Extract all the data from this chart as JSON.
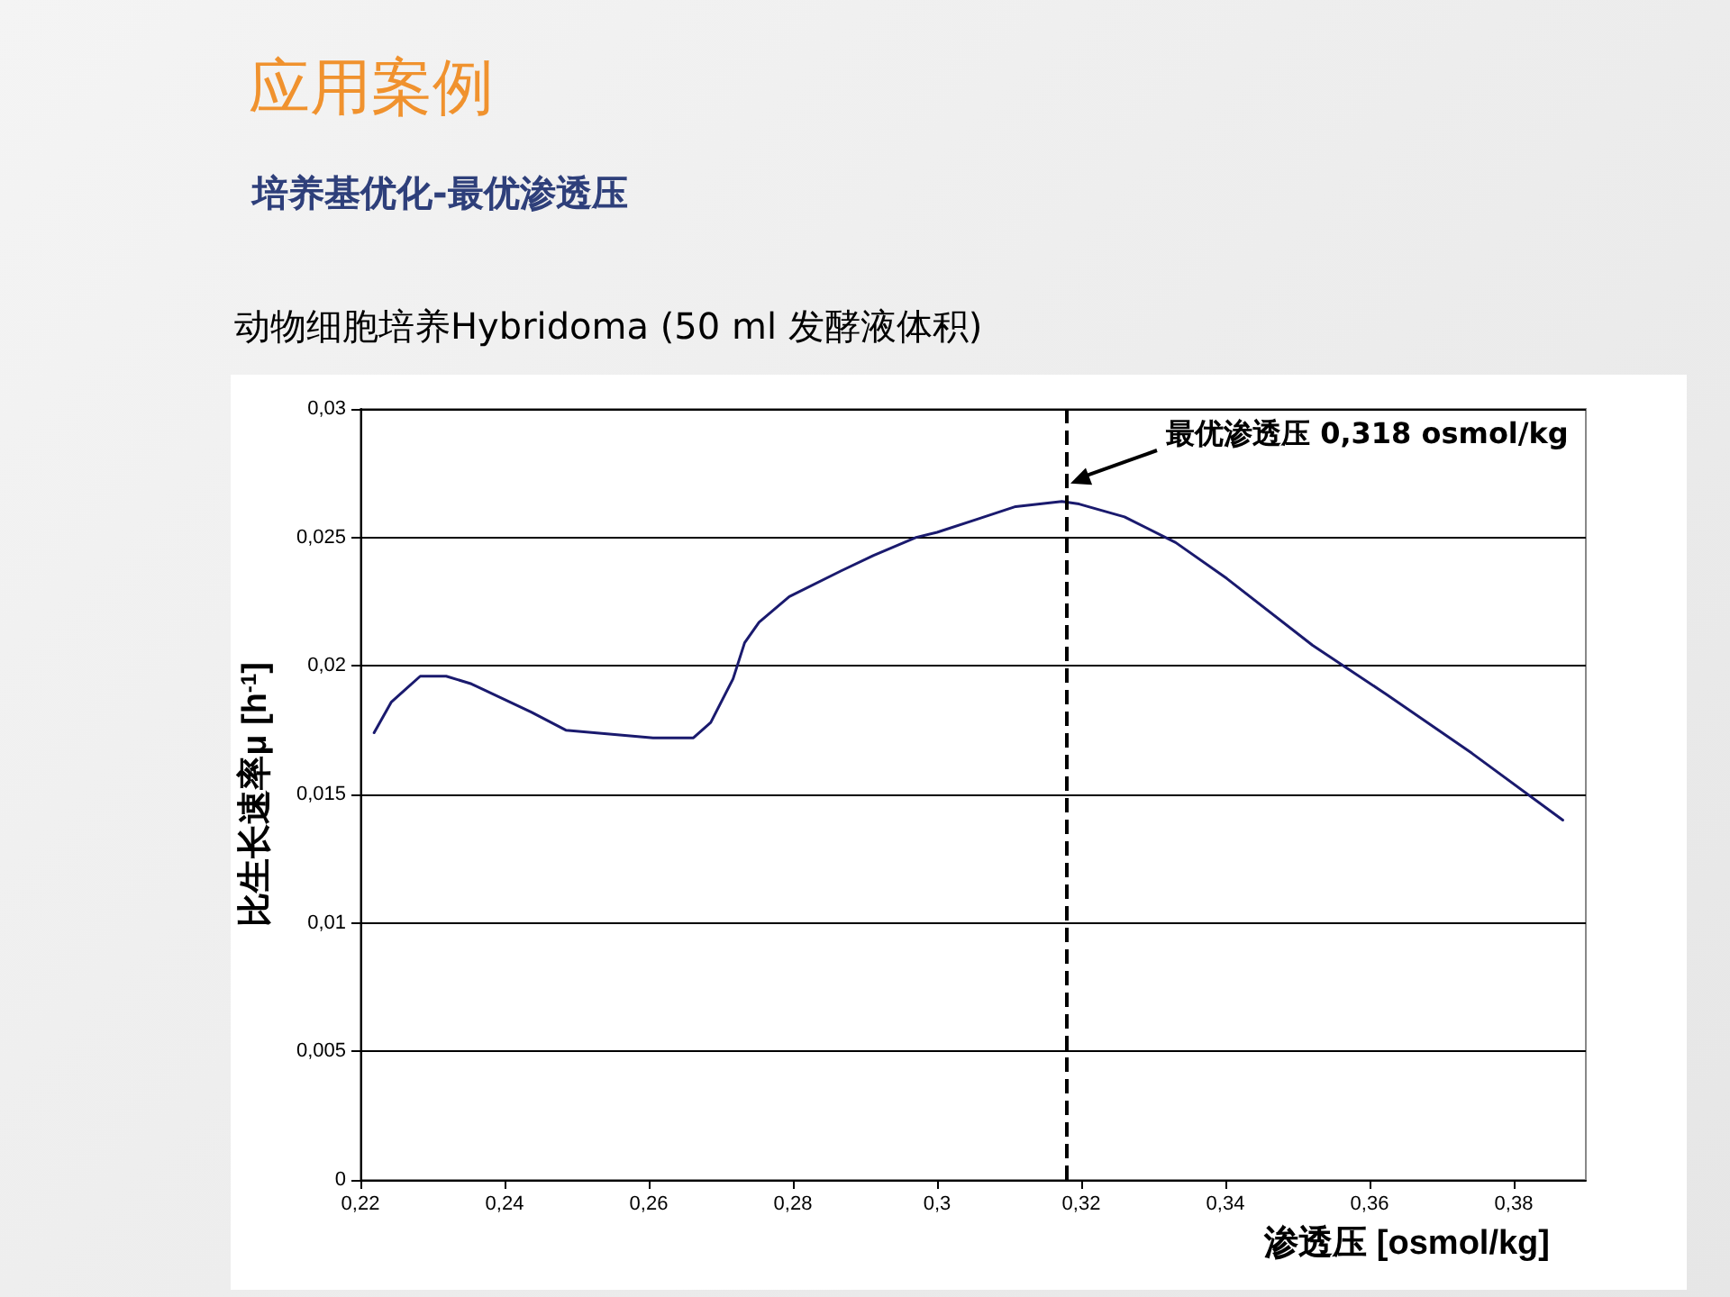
{
  "chart_data": {
    "type": "line",
    "title": "应用案例",
    "subtitle": "培养基优化-最优渗透压",
    "annotations": [
      "动物细胞培养Hybridoma (50 ml 发酵液体积)"
    ],
    "xlabel": "渗透压 [osmol/kg]",
    "ylabel": "比生长速率μ [h$^{-1}$]",
    "x": [
      0.2219,
      0.2243,
      0.2283,
      0.2319,
      0.2354,
      0.2437,
      0.2485,
      0.2606,
      0.2662,
      0.2686,
      0.2717,
      0.2733,
      0.2753,
      0.2795,
      0.2867,
      0.2912,
      0.2971,
      0.3,
      0.3055,
      0.3109,
      0.3173,
      0.3197,
      0.326,
      0.3331,
      0.3402,
      0.3521,
      0.3623,
      0.3742,
      0.3868
    ],
    "series": [
      {
        "color": "#1a1a6e",
        "values": [
          0.0174,
          0.0186,
          0.0196,
          0.0196,
          0.0193,
          0.0182,
          0.0175,
          0.0172,
          0.0172,
          0.0178,
          0.0195,
          0.0209,
          0.0217,
          0.0227,
          0.0237,
          0.0243,
          0.025,
          0.0252,
          0.0257,
          0.0262,
          0.0264,
          0.0263,
          0.0258,
          0.0248,
          0.0234,
          0.0208,
          0.0189,
          0.0166,
          0.014
        ]
      }
    ],
    "xlim": [
      0.22,
      0.39
    ],
    "ylim": [
      0,
      0.03
    ],
    "xticks": [
      {
        "value": 0.22,
        "label": "0,22"
      },
      {
        "value": 0.24,
        "label": "0,24"
      },
      {
        "value": 0.26,
        "label": "0,26"
      },
      {
        "value": 0.28,
        "label": "0,28"
      },
      {
        "value": 0.3,
        "label": "0,3"
      },
      {
        "value": 0.32,
        "label": "0,32"
      },
      {
        "value": 0.34,
        "label": "0,34"
      },
      {
        "value": 0.36,
        "label": "0,36"
      },
      {
        "value": 0.38,
        "label": "0,38"
      }
    ],
    "yticks": [
      {
        "value": 0,
        "label": "0"
      },
      {
        "value": 0.005,
        "label": "0,005"
      },
      {
        "value": 0.01,
        "label": "0,01"
      },
      {
        "value": 0.015,
        "label": "0,015"
      },
      {
        "value": 0.02,
        "label": "0,02"
      },
      {
        "value": 0.025,
        "label": "0,025"
      },
      {
        "value": 0.03,
        "label": "0,03"
      }
    ],
    "ref_lines": [
      {
        "axis": "x",
        "value": 0.318,
        "label": "最优渗透压 0,318 osmol/kg",
        "line_style": "dashed",
        "color": "#000000"
      }
    ],
    "grid": "y",
    "marker": "none",
    "line_style": "solid"
  }
}
